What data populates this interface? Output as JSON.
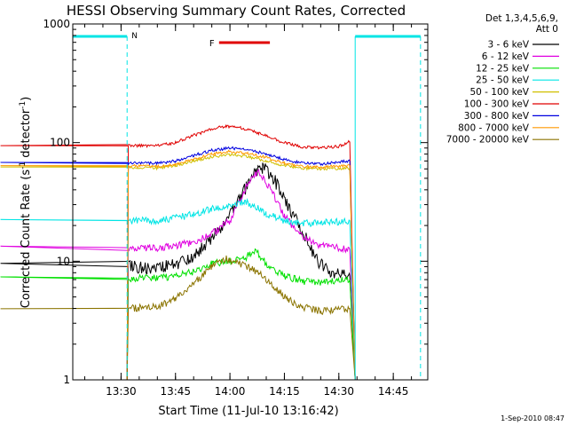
{
  "chart_data": {
    "type": "line",
    "title": "HESSI Observing Summary Count Rates, Corrected",
    "xlabel": "Start Time (11-Jul-10 13:16:42)",
    "ylabel_main": "Corrected Count Rate (s",
    "ylabel_sup1": "-1",
    "ylabel_mid": " detector",
    "ylabel_sup2": "-1",
    "ylabel_end": ")",
    "yscale": "log",
    "ylim": [
      1,
      1000
    ],
    "xlim": [
      "13:16:42",
      "14:54:30"
    ],
    "x_ticks": [
      "13:30",
      "13:45",
      "14:00",
      "14:15",
      "14:30",
      "14:45"
    ],
    "y_ticks": [
      "1",
      "10",
      "100",
      "1000"
    ],
    "legend_header": [
      "Det 1,3,4,5,6,9,",
      "Att 0"
    ],
    "legend_position": "outside-right",
    "timestamp": "1-Sep-2010 08:47",
    "flags": [
      {
        "label": "N",
        "color": "#00e5e5",
        "style": "dashed"
      },
      {
        "label": "F",
        "color": "#e00000",
        "style": "solid"
      }
    ],
    "night_intervals": [
      [
        "13:16:42",
        "13:31:40"
      ],
      [
        "14:34:30",
        "14:52:30"
      ]
    ],
    "flare_interval": [
      "13:57:00",
      "14:11:00"
    ],
    "series": [
      {
        "name": "3 - 6 keV",
        "color": "#000000",
        "points": [
          [
            "13:32",
            9
          ],
          [
            "13:40",
            8.8
          ],
          [
            "13:45",
            9.5
          ],
          [
            "13:50",
            11
          ],
          [
            "13:55",
            16
          ],
          [
            "14:00",
            24
          ],
          [
            "14:04",
            40
          ],
          [
            "14:07",
            58
          ],
          [
            "14:09",
            62
          ],
          [
            "14:12",
            50
          ],
          [
            "14:16",
            30
          ],
          [
            "14:20",
            18
          ],
          [
            "14:24",
            10
          ],
          [
            "14:28",
            8
          ],
          [
            "14:33",
            7.5
          ]
        ]
      },
      {
        "name": "6 - 12 keV",
        "color": "#e000e0",
        "points": [
          [
            "13:32",
            13
          ],
          [
            "13:40",
            13
          ],
          [
            "13:45",
            13.5
          ],
          [
            "13:50",
            14.5
          ],
          [
            "13:55",
            17
          ],
          [
            "14:00",
            22
          ],
          [
            "14:03",
            34
          ],
          [
            "14:06",
            52
          ],
          [
            "14:08",
            56
          ],
          [
            "14:11",
            42
          ],
          [
            "14:15",
            24
          ],
          [
            "14:20",
            16
          ],
          [
            "14:25",
            13.5
          ],
          [
            "14:33",
            12.5
          ]
        ]
      },
      {
        "name": "12 - 25 keV",
        "color": "#00e000",
        "points": [
          [
            "13:32",
            7.2
          ],
          [
            "13:40",
            7.2
          ],
          [
            "13:45",
            7.5
          ],
          [
            "13:50",
            8.2
          ],
          [
            "13:55",
            9.5
          ],
          [
            "14:00",
            10
          ],
          [
            "14:04",
            10.5
          ],
          [
            "14:07",
            12.5
          ],
          [
            "14:10",
            9.5
          ],
          [
            "14:15",
            7.5
          ],
          [
            "14:20",
            6.8
          ],
          [
            "14:25",
            6.6
          ],
          [
            "14:33",
            7
          ]
        ]
      },
      {
        "name": "25 - 50 keV",
        "color": "#00e5e5",
        "points": [
          [
            "13:32",
            22
          ],
          [
            "13:40",
            22
          ],
          [
            "13:45",
            23
          ],
          [
            "13:50",
            25
          ],
          [
            "13:55",
            27.5
          ],
          [
            "14:00",
            30
          ],
          [
            "14:04",
            32
          ],
          [
            "14:07",
            29
          ],
          [
            "14:10",
            25
          ],
          [
            "14:15",
            22
          ],
          [
            "14:20",
            21
          ],
          [
            "14:25",
            21
          ],
          [
            "14:33",
            22
          ]
        ]
      },
      {
        "name": "50 - 100 keV",
        "color": "#d0c000",
        "points": [
          [
            "13:32",
            62
          ],
          [
            "13:40",
            61
          ],
          [
            "13:45",
            64
          ],
          [
            "13:50",
            70
          ],
          [
            "13:55",
            76
          ],
          [
            "14:00",
            79
          ],
          [
            "14:05",
            76
          ],
          [
            "14:10",
            70
          ],
          [
            "14:15",
            64
          ],
          [
            "14:20",
            61
          ],
          [
            "14:25",
            60
          ],
          [
            "14:33",
            61
          ]
        ]
      },
      {
        "name": "100 - 300 keV",
        "color": "#e00000",
        "points": [
          [
            "13:32",
            94
          ],
          [
            "13:40",
            94
          ],
          [
            "13:45",
            100
          ],
          [
            "13:50",
            115
          ],
          [
            "13:55",
            130
          ],
          [
            "13:59",
            138
          ],
          [
            "14:03",
            133
          ],
          [
            "14:08",
            120
          ],
          [
            "14:14",
            102
          ],
          [
            "14:20",
            92
          ],
          [
            "14:25",
            90
          ],
          [
            "14:30",
            93
          ],
          [
            "14:33",
            102
          ]
        ]
      },
      {
        "name": "300 - 800 keV",
        "color": "#0000e0",
        "points": [
          [
            "13:32",
            68
          ],
          [
            "13:40",
            67
          ],
          [
            "13:45",
            70
          ],
          [
            "13:50",
            78
          ],
          [
            "13:55",
            86
          ],
          [
            "14:00",
            90
          ],
          [
            "14:05",
            87
          ],
          [
            "14:10",
            80
          ],
          [
            "14:15",
            72
          ],
          [
            "14:20",
            67
          ],
          [
            "14:25",
            66
          ],
          [
            "14:33",
            70
          ]
        ]
      },
      {
        "name": "800 - 7000 keV",
        "color": "#ff9900",
        "points": [
          [
            "13:32",
            64
          ],
          [
            "13:40",
            63
          ],
          [
            "13:45",
            66
          ],
          [
            "13:50",
            73
          ],
          [
            "13:55",
            80
          ],
          [
            "14:00",
            84
          ],
          [
            "14:05",
            81
          ],
          [
            "14:10",
            75
          ],
          [
            "14:15",
            67
          ],
          [
            "14:20",
            63
          ],
          [
            "14:25",
            62
          ],
          [
            "14:33",
            64
          ]
        ]
      },
      {
        "name": "7000 - 20000 keV",
        "color": "#8b7400",
        "points": [
          [
            "13:32",
            4
          ],
          [
            "13:40",
            4.1
          ],
          [
            "13:45",
            4.8
          ],
          [
            "13:50",
            6.5
          ],
          [
            "13:55",
            9
          ],
          [
            "13:59",
            10.5
          ],
          [
            "14:03",
            9.5
          ],
          [
            "14:08",
            8
          ],
          [
            "14:12",
            6
          ],
          [
            "14:16",
            4.8
          ],
          [
            "14:20",
            4.1
          ],
          [
            "14:25",
            3.8
          ],
          [
            "14:33",
            4
          ]
        ]
      }
    ]
  }
}
